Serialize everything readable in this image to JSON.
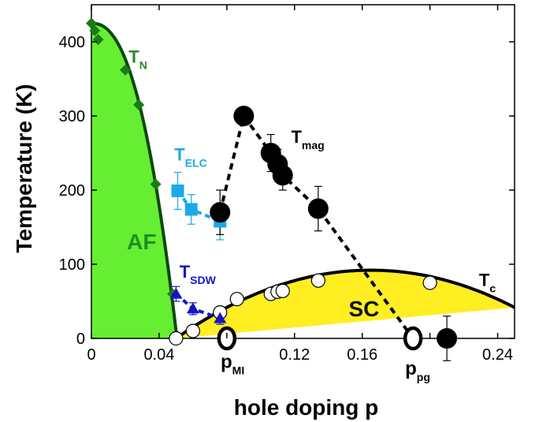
{
  "chart_data": {
    "type": "scatter",
    "title": "",
    "xlabel": "hole doping p",
    "ylabel": "Temperature (K)",
    "xlim": [
      0,
      0.25
    ],
    "ylim": [
      0,
      450
    ],
    "x_ticks": [
      "0",
      "0.04",
      "0.08",
      "0.12",
      "0.16",
      "0.2",
      "0.24"
    ],
    "x_tick_values": [
      0,
      0.04,
      0.08,
      0.12,
      0.16,
      0.2,
      0.24
    ],
    "x_tick_labels_shown": [
      "0",
      "0.04",
      "",
      "0.12",
      "0.16",
      "",
      "0.24"
    ],
    "y_ticks": [
      "0",
      "100",
      "200",
      "300",
      "400"
    ],
    "y_tick_values": [
      0,
      100,
      200,
      300,
      400
    ],
    "grid": false,
    "regions": [
      {
        "name": "AF",
        "label": "AF",
        "color": "#66ee33",
        "label_color": "#1f8f1f",
        "label_xy": [
          0.021,
          120
        ]
      },
      {
        "name": "SC",
        "label": "SC",
        "color": "#ffee22",
        "label_color": "#111111",
        "label_xy": [
          0.152,
          30
        ]
      }
    ],
    "series": [
      {
        "name": "T_N",
        "label": {
          "main": "T",
          "sub": "N"
        },
        "label_xy": [
          0.022,
          372
        ],
        "color": "#1a7a1a",
        "marker": "diamond",
        "x": [
          0.0,
          0.002,
          0.004,
          0.02,
          0.028,
          0.038,
          0.048
        ],
        "y": [
          425,
          415,
          403,
          362,
          315,
          208,
          60
        ]
      },
      {
        "name": "T_ELC",
        "label": {
          "main": "T",
          "sub": "ELC"
        },
        "label_xy": [
          0.049,
          240
        ],
        "color": "#1aaae8",
        "marker": "square",
        "x": [
          0.051,
          0.059,
          0.076
        ],
        "y": [
          199,
          174,
          158
        ],
        "yerr": [
          25,
          20,
          25
        ]
      },
      {
        "name": "T_SDW",
        "label": {
          "main": "T",
          "sub": "SDW"
        },
        "label_xy": [
          0.052,
          82
        ],
        "color": "#1616c0",
        "marker": "triangle",
        "x": [
          0.05,
          0.06,
          0.076
        ],
        "y": [
          60,
          40,
          27
        ],
        "yerr": [
          10,
          8,
          8
        ]
      },
      {
        "name": "T_mag",
        "label": {
          "main": "T",
          "sub": "mag"
        },
        "label_xy": [
          0.118,
          264
        ],
        "color": "#000000",
        "marker": "filled-circle",
        "x": [
          0.076,
          0.09,
          0.106,
          0.11,
          0.113,
          0.134,
          0.21
        ],
        "y": [
          170,
          300,
          250,
          235,
          220,
          175,
          0
        ],
        "yerr": [
          30,
          10,
          25,
          20,
          20,
          30,
          30
        ]
      },
      {
        "name": "T_c",
        "label": {
          "main": "T",
          "sub": "c"
        },
        "label_xy": [
          0.229,
          71
        ],
        "color": "#000000",
        "marker": "open-circle",
        "x": [
          0.05,
          0.06,
          0.076,
          0.086,
          0.106,
          0.11,
          0.113,
          0.134,
          0.2
        ],
        "y": [
          0,
          10,
          35,
          53,
          60,
          63,
          64,
          78,
          75
        ]
      },
      {
        "name": "critical points",
        "color": "#000000",
        "marker": "large-open-ring",
        "x": [
          0.08,
          0.19
        ],
        "y": [
          0,
          0
        ]
      }
    ],
    "annotations": [
      {
        "main": "p",
        "sub": "MI",
        "xy": [
          0.081,
          -40
        ]
      },
      {
        "main": "p",
        "sub": "pg",
        "xy": [
          0.19,
          -49
        ]
      }
    ]
  }
}
